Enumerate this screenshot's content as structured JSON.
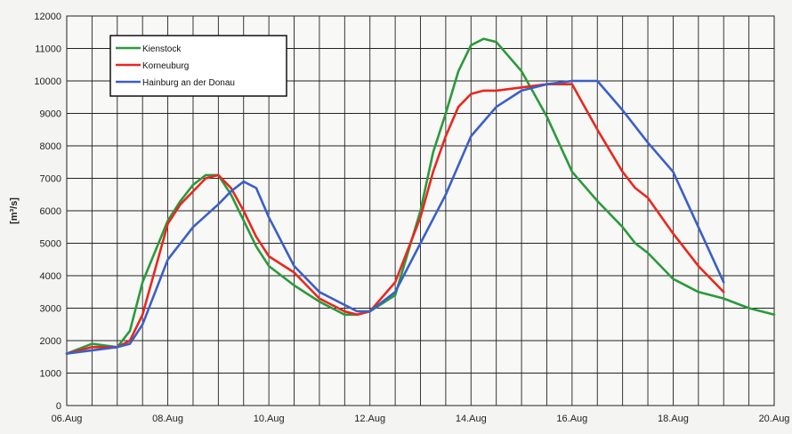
{
  "chart_data": {
    "type": "line",
    "title": "",
    "xlabel": "",
    "ylabel": "[m³/s]",
    "ylim": [
      0,
      12000
    ],
    "yticks": [
      0,
      1000,
      2000,
      3000,
      4000,
      5000,
      6000,
      7000,
      8000,
      9000,
      10000,
      11000,
      12000
    ],
    "xlim": [
      "2002-08-06",
      "2002-08-20"
    ],
    "xticks": [
      "06.Aug",
      "08.Aug",
      "10.Aug",
      "12.Aug",
      "14.Aug",
      "16.Aug",
      "18.Aug",
      "20.Aug"
    ],
    "grid": true,
    "legend_position": "top-left",
    "series": [
      {
        "name": "Kienstock",
        "color": "#2a9a3c",
        "x": [
          "2002-08-06 00:00",
          "2002-08-06 12:00",
          "2002-08-07 00:00",
          "2002-08-07 06:00",
          "2002-08-07 12:00",
          "2002-08-08 00:00",
          "2002-08-08 06:00",
          "2002-08-08 12:00",
          "2002-08-08 18:00",
          "2002-08-09 00:00",
          "2002-08-09 06:00",
          "2002-08-09 12:00",
          "2002-08-09 18:00",
          "2002-08-10 00:00",
          "2002-08-10 12:00",
          "2002-08-11 00:00",
          "2002-08-11 06:00",
          "2002-08-11 12:00",
          "2002-08-11 18:00",
          "2002-08-12 00:00",
          "2002-08-12 12:00",
          "2002-08-13 00:00",
          "2002-08-13 06:00",
          "2002-08-13 12:00",
          "2002-08-13 18:00",
          "2002-08-14 00:00",
          "2002-08-14 06:00",
          "2002-08-14 12:00",
          "2002-08-15 00:00",
          "2002-08-15 12:00",
          "2002-08-16 00:00",
          "2002-08-16 12:00",
          "2002-08-17 00:00",
          "2002-08-17 06:00",
          "2002-08-17 12:00",
          "2002-08-18 00:00",
          "2002-08-18 12:00",
          "2002-08-19 00:00",
          "2002-08-19 12:00",
          "2002-08-20 00:00"
        ],
        "y": [
          1600,
          1900,
          1800,
          2300,
          3800,
          5700,
          6300,
          6800,
          7100,
          7100,
          6500,
          5700,
          4900,
          4300,
          3700,
          3200,
          3000,
          2800,
          2800,
          2900,
          3400,
          6000,
          7800,
          9000,
          10300,
          11100,
          11300,
          11200,
          10300,
          8900,
          7200,
          6300,
          5500,
          5000,
          4700,
          3900,
          3500,
          3300,
          3000,
          2800
        ]
      },
      {
        "name": "Korneuburg",
        "color": "#e8281f",
        "x": [
          "2002-08-06 00:00",
          "2002-08-06 12:00",
          "2002-08-07 00:00",
          "2002-08-07 06:00",
          "2002-08-07 12:00",
          "2002-08-08 00:00",
          "2002-08-08 06:00",
          "2002-08-08 12:00",
          "2002-08-08 18:00",
          "2002-08-09 00:00",
          "2002-08-09 06:00",
          "2002-08-09 12:00",
          "2002-08-09 18:00",
          "2002-08-10 00:00",
          "2002-08-10 12:00",
          "2002-08-11 00:00",
          "2002-08-11 06:00",
          "2002-08-11 12:00",
          "2002-08-11 18:00",
          "2002-08-12 00:00",
          "2002-08-12 12:00",
          "2002-08-13 00:00",
          "2002-08-13 06:00",
          "2002-08-13 12:00",
          "2002-08-13 18:00",
          "2002-08-14 00:00",
          "2002-08-14 06:00",
          "2002-08-14 12:00",
          "2002-08-15 00:00",
          "2002-08-15 12:00",
          "2002-08-16 00:00",
          "2002-08-16 12:00",
          "2002-08-17 00:00",
          "2002-08-17 06:00",
          "2002-08-17 12:00",
          "2002-08-18 00:00",
          "2002-08-18 12:00",
          "2002-08-19 00:00"
        ],
        "y": [
          1600,
          1800,
          1800,
          2000,
          2800,
          5600,
          6200,
          6600,
          7000,
          7100,
          6700,
          6000,
          5200,
          4600,
          4100,
          3300,
          3100,
          2900,
          2800,
          2900,
          3800,
          5800,
          7200,
          8300,
          9200,
          9600,
          9700,
          9700,
          9800,
          9900,
          9900,
          8500,
          7200,
          6700,
          6400,
          5300,
          4300,
          3500
        ]
      },
      {
        "name": "Hainburg an der Donau",
        "color": "#3b5fc8",
        "x": [
          "2002-08-06 00:00",
          "2002-08-06 12:00",
          "2002-08-07 00:00",
          "2002-08-07 06:00",
          "2002-08-07 12:00",
          "2002-08-08 00:00",
          "2002-08-08 12:00",
          "2002-08-09 00:00",
          "2002-08-09 06:00",
          "2002-08-09 12:00",
          "2002-08-09 18:00",
          "2002-08-10 00:00",
          "2002-08-10 12:00",
          "2002-08-11 00:00",
          "2002-08-11 12:00",
          "2002-08-11 18:00",
          "2002-08-12 00:00",
          "2002-08-12 12:00",
          "2002-08-13 00:00",
          "2002-08-13 12:00",
          "2002-08-14 00:00",
          "2002-08-14 12:00",
          "2002-08-15 00:00",
          "2002-08-15 12:00",
          "2002-08-16 00:00",
          "2002-08-16 12:00",
          "2002-08-17 00:00",
          "2002-08-17 12:00",
          "2002-08-18 00:00",
          "2002-08-18 12:00",
          "2002-08-19 00:00"
        ],
        "y": [
          1600,
          1700,
          1800,
          1900,
          2500,
          4500,
          5500,
          6200,
          6600,
          6900,
          6700,
          5800,
          4300,
          3500,
          3100,
          2900,
          2900,
          3500,
          5000,
          6500,
          8300,
          9200,
          9700,
          9900,
          10000,
          10000,
          9100,
          8100,
          7200,
          5500,
          3800
        ]
      }
    ]
  }
}
